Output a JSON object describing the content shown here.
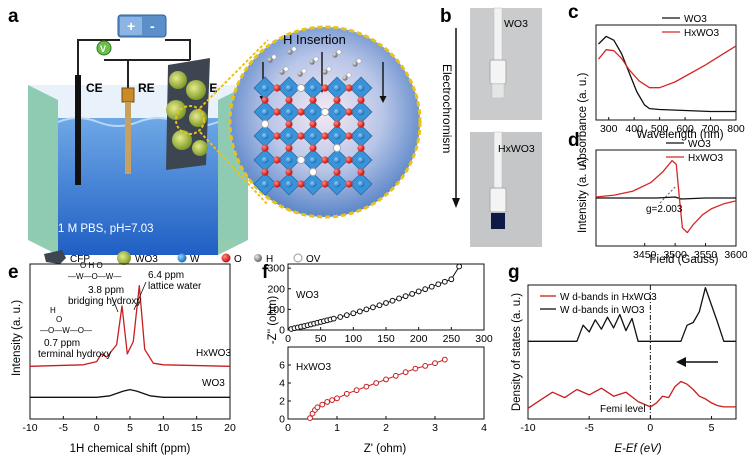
{
  "panels": {
    "a": {
      "label": "a",
      "electrodes": [
        "CE",
        "RE",
        "WE"
      ],
      "voltmeter": "V",
      "battery_plus": "+",
      "battery_minus": "-",
      "electrolyte": "1 M PBS, pH=7.03",
      "inset_title": "H Insertion",
      "legend": [
        {
          "icon": "cfp-icon",
          "text": "CFP"
        },
        {
          "icon": "wo3-particle-icon",
          "text": "WO3"
        },
        {
          "icon": "w-atom-icon",
          "text": "W",
          "color": "#2a8fd6"
        },
        {
          "icon": "o-atom-icon",
          "text": "O",
          "color": "#e0201c"
        },
        {
          "icon": "h-atom-icon",
          "text": "H",
          "color": "#8a8a8a"
        },
        {
          "icon": "vacancy-icon",
          "text": "OV"
        }
      ]
    },
    "b": {
      "label": "b",
      "arrow_text": "Electrochromism",
      "top_photo_label": "WO3",
      "bottom_photo_label": "HxWO3"
    },
    "c": {
      "label": "c",
      "xlabel": "Wavelength (nm)",
      "ylabel": "Absorbance (a. u.)",
      "legend": [
        "WO3",
        "HxWO3"
      ]
    },
    "d": {
      "label": "d",
      "xlabel": "Field (Gauss)",
      "ylabel": "Intensity (a. u.)",
      "legend": [
        "WO3",
        "HxWO3"
      ],
      "annotation": "g=2.003"
    },
    "e": {
      "label": "e",
      "xlabel": "1H chemical shift (ppm)",
      "ylabel": "Intensity (a. u.)",
      "peak_labels": [
        {
          "ppm": "6.4 ppm",
          "desc": "lattice water"
        },
        {
          "ppm": "3.8 ppm",
          "desc": "bridging hydroxy"
        },
        {
          "ppm": "0.7 ppm",
          "desc": "terminal hydroxy"
        }
      ],
      "trace_labels": [
        "HxWO3",
        "WO3"
      ],
      "struct_bridging": "O  H  O",
      "struct_bridging_atoms": "—W—O—W—",
      "struct_terminal_h": "H",
      "struct_terminal_o": "O",
      "struct_terminal_atoms": "—O—W—O—"
    },
    "f": {
      "label": "f",
      "ylabel": "-Z'' (ohm)",
      "xlabel": "Z' (ohm)",
      "top_title": "WO3",
      "bottom_title": "HxWO3"
    },
    "g": {
      "label": "g",
      "ylabel": "Density of states (a. u.)",
      "xlabel": "E-Ef (eV)",
      "legend": [
        "W d-bands in HxWO3",
        "W d-bands in WO3"
      ],
      "annotation": "Femi level"
    }
  },
  "chart_data": [
    {
      "id": "c",
      "type": "line",
      "title": "",
      "xlabel": "Wavelength (nm)",
      "ylabel": "Absorbance (a. u.)",
      "xlim": [
        250,
        800
      ],
      "ylim": [
        0,
        1
      ],
      "xticks": [
        300,
        400,
        500,
        600,
        700,
        800
      ],
      "series": [
        {
          "name": "WO3",
          "color": "#111111",
          "x": [
            260,
            290,
            320,
            350,
            380,
            410,
            440,
            460,
            500,
            600,
            700,
            800
          ],
          "y": [
            0.8,
            0.88,
            0.84,
            0.7,
            0.5,
            0.3,
            0.16,
            0.12,
            0.11,
            0.1,
            0.09,
            0.09
          ]
        },
        {
          "name": "HxWO3",
          "color": "#d62728",
          "x": [
            260,
            290,
            320,
            350,
            380,
            420,
            460,
            500,
            560,
            620,
            680,
            740,
            800
          ],
          "y": [
            0.64,
            0.74,
            0.73,
            0.65,
            0.53,
            0.41,
            0.34,
            0.34,
            0.4,
            0.49,
            0.58,
            0.68,
            0.78
          ]
        }
      ]
    },
    {
      "id": "d",
      "type": "line",
      "title": "",
      "xlabel": "Field (Gauss)",
      "ylabel": "Intensity (a. u.)",
      "xlim": [
        3370,
        3600
      ],
      "ylim": [
        -1,
        1
      ],
      "xticks": [
        3450,
        3500,
        3550,
        3600
      ],
      "series": [
        {
          "name": "WO3",
          "color": "#111111",
          "x": [
            3370,
            3420,
            3470,
            3500,
            3505,
            3510,
            3550,
            3600
          ],
          "y": [
            0,
            0,
            0,
            0.02,
            0,
            -0.02,
            0,
            0
          ]
        },
        {
          "name": "HxWO3",
          "color": "#d62728",
          "x": [
            3370,
            3400,
            3430,
            3460,
            3480,
            3495,
            3502,
            3507,
            3512,
            3520,
            3530,
            3545,
            3560,
            3580,
            3600
          ],
          "y": [
            0.02,
            0.06,
            0.14,
            0.32,
            0.55,
            0.78,
            0.7,
            0.0,
            -0.62,
            -0.72,
            -0.55,
            -0.35,
            -0.22,
            -0.12,
            -0.06
          ]
        }
      ]
    },
    {
      "id": "e",
      "type": "line",
      "title": "",
      "xlabel": "1H chemical shift (ppm)",
      "ylabel": "Intensity (a. u.)",
      "xlim": [
        -10,
        20
      ],
      "ylim": [
        0,
        1
      ],
      "xticks": [
        -10,
        -5,
        0,
        5,
        10,
        15,
        20
      ],
      "series": [
        {
          "name": "HxWO3",
          "color": "#c81e1e",
          "x": [
            -10,
            -2,
            0,
            0.7,
            1.5,
            3,
            3.8,
            4.6,
            5.5,
            6.4,
            7.2,
            8.5,
            10,
            20
          ],
          "y": [
            0.34,
            0.35,
            0.37,
            0.42,
            0.4,
            0.48,
            0.73,
            0.42,
            0.5,
            0.86,
            0.45,
            0.36,
            0.35,
            0.34
          ]
        },
        {
          "name": "WO3",
          "color": "#111111",
          "x": [
            -10,
            0,
            2,
            4,
            5,
            6,
            8,
            10,
            20
          ],
          "y": [
            0.14,
            0.14,
            0.15,
            0.18,
            0.19,
            0.18,
            0.15,
            0.14,
            0.14
          ]
        }
      ]
    },
    {
      "id": "f-top",
      "type": "scatter",
      "title": "WO3",
      "xlabel": "",
      "ylabel": "-Z'' (ohm)",
      "xlim": [
        0,
        300
      ],
      "ylim": [
        0,
        320
      ],
      "xticks": [
        0,
        50,
        100,
        150,
        200,
        250,
        300
      ],
      "yticks": [
        0,
        100,
        200,
        300
      ],
      "series": [
        {
          "name": "WO3",
          "color": "#111111",
          "x": [
            5,
            10,
            15,
            20,
            25,
            30,
            35,
            40,
            45,
            50,
            55,
            60,
            65,
            70,
            80,
            90,
            100,
            110,
            120,
            130,
            140,
            150,
            160,
            170,
            180,
            190,
            200,
            210,
            220,
            230,
            240,
            250,
            262
          ],
          "y": [
            5,
            9,
            12,
            16,
            19,
            23,
            27,
            31,
            35,
            39,
            43,
            47,
            51,
            55,
            63,
            72,
            81,
            90,
            100,
            110,
            120,
            131,
            142,
            153,
            164,
            175,
            187,
            198,
            210,
            222,
            234,
            246,
            308
          ]
        }
      ]
    },
    {
      "id": "f-bottom",
      "type": "scatter",
      "title": "HxWO3",
      "xlabel": "Z' (ohm)",
      "ylabel": "-Z'' (ohm)",
      "xlim": [
        0,
        4
      ],
      "ylim": [
        0,
        8
      ],
      "xticks": [
        0,
        1,
        2,
        3,
        4
      ],
      "yticks": [
        0,
        2,
        4,
        6
      ],
      "series": [
        {
          "name": "HxWO3",
          "color": "#c81e1e",
          "x": [
            0.45,
            0.5,
            0.55,
            0.6,
            0.7,
            0.8,
            0.9,
            1.0,
            1.2,
            1.4,
            1.6,
            1.8,
            2.0,
            2.2,
            2.4,
            2.6,
            2.8,
            3.0,
            3.2
          ],
          "y": [
            0.1,
            0.6,
            1.0,
            1.3,
            1.6,
            1.9,
            2.1,
            2.3,
            2.8,
            3.2,
            3.6,
            4.0,
            4.4,
            4.8,
            5.2,
            5.6,
            5.9,
            6.2,
            6.6
          ]
        }
      ]
    },
    {
      "id": "g",
      "type": "line",
      "title": "",
      "xlabel": "E-Ef (eV)",
      "ylabel": "Density of states (a. u.)",
      "xlim": [
        -10,
        7
      ],
      "ylim": [
        0,
        1
      ],
      "xticks": [
        -10,
        -5,
        0,
        5
      ],
      "series": [
        {
          "name": "W d-bands in WO3",
          "color": "#111111",
          "x": [
            -10,
            -6,
            -5.5,
            -5,
            -4.5,
            -4,
            -3.5,
            -3,
            -2.5,
            -2,
            -1.5,
            -1,
            0,
            2.5,
            3,
            3.5,
            4,
            4.5,
            5,
            5.5,
            6,
            7
          ],
          "y": [
            0.58,
            0.58,
            0.7,
            0.65,
            0.74,
            0.67,
            0.76,
            0.68,
            0.78,
            0.66,
            0.75,
            0.58,
            0.58,
            0.58,
            0.7,
            0.72,
            0.8,
            0.98,
            0.85,
            0.72,
            0.58,
            0.58
          ]
        },
        {
          "name": "W d-bands in HxWO3",
          "color": "#c81e1e",
          "x": [
            -10,
            -9,
            -8,
            -7,
            -6,
            -5,
            -4,
            -3,
            -2,
            -1,
            0,
            0.5,
            1,
            1.5,
            2,
            2.5,
            3,
            3.5,
            4,
            4.5,
            5,
            5.5,
            6,
            7
          ],
          "y": [
            0.08,
            0.14,
            0.2,
            0.16,
            0.22,
            0.18,
            0.23,
            0.17,
            0.2,
            0.13,
            0.09,
            0.12,
            0.17,
            0.16,
            0.24,
            0.28,
            0.26,
            0.22,
            0.17,
            0.15,
            0.12,
            0.1,
            0.09,
            0.09
          ]
        }
      ]
    }
  ]
}
